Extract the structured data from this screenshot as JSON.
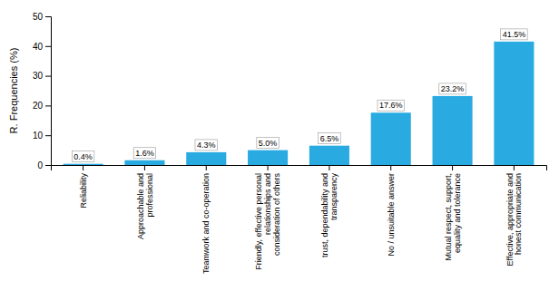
{
  "chart_data": {
    "type": "bar",
    "categories": [
      "Reliability",
      "Approachable and\nprofessional",
      "Teamwork and co-operation",
      "Friendly, effective personal\nrelationships and\nconsideration of others",
      "trust, dependability and\ntransparency",
      "No / unsuitable answer",
      "Mutual respect, support,\nequality and tolerance",
      "Effective, appropriate and\nhonest communication"
    ],
    "values": [
      0.4,
      1.6,
      4.3,
      5.0,
      6.5,
      17.6,
      23.2,
      41.5
    ],
    "value_labels": [
      "0.4%",
      "1.6%",
      "4.3%",
      "5.0%",
      "6.5%",
      "17.6%",
      "23.2%",
      "41.5%"
    ],
    "data_labels": true,
    "color": "#29abe2",
    "ylabel": "R. Frequencies (%)",
    "ylim": [
      0,
      50
    ],
    "yticks": [
      0,
      10,
      20,
      30,
      40,
      50
    ],
    "grid": false
  }
}
